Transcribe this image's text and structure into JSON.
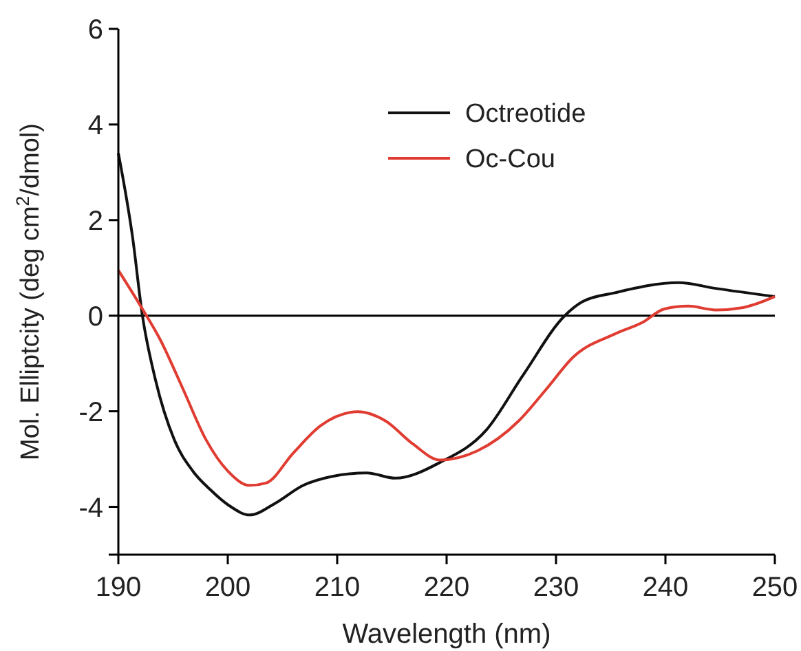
{
  "chart_data": {
    "type": "line",
    "xlabel": "Wavelength (nm)",
    "ylabel": "Mol. Elliptcity (deg cm$^{2}$/dmol)",
    "xlim": [
      190,
      250
    ],
    "xticks": [
      190,
      200,
      210,
      220,
      230,
      240,
      250
    ],
    "ylim": [
      -5,
      6
    ],
    "yticks": [
      {
        "value": -5,
        "label": null
      },
      -4,
      -2,
      0,
      2,
      4,
      6
    ],
    "legend": "top right",
    "grid": false,
    "marker": "none",
    "line_style": "solid",
    "ref_lines": [
      {
        "axis": "y",
        "value": 0,
        "label": null,
        "color": "#000000"
      }
    ],
    "series": [
      {
        "name": "Octreotide",
        "color": "#111111",
        "x": [
          190,
          191.3,
          192.2,
          193.4,
          195.1,
          196.8,
          198.4,
          200.1,
          202,
          204.3,
          206.9,
          209.4,
          212.7,
          215.3,
          219.4,
          223.6,
          227,
          230.8,
          232.4,
          235.4,
          241.2,
          244.6,
          250
        ],
        "values": [
          3.4,
          1.64,
          0,
          -1.35,
          -2.59,
          -3.25,
          -3.64,
          -3.97,
          -4.17,
          -3.93,
          -3.55,
          -3.37,
          -3.29,
          -3.4,
          -3.07,
          -2.4,
          -1.24,
          0,
          0.29,
          0.48,
          0.69,
          0.57,
          0.4
        ]
      },
      {
        "name": "Oc-Cou",
        "color": "#e03c31",
        "x": [
          190,
          192.2,
          193.8,
          195.9,
          198,
          200,
          202,
          203.5,
          206,
          208.5,
          211.9,
          214.4,
          216.9,
          219.4,
          222.8,
          226.6,
          229.1,
          231.6,
          235.4,
          237.9,
          239.9,
          242.1,
          244.6,
          247.1,
          250
        ],
        "values": [
          0.95,
          0.14,
          -0.49,
          -1.53,
          -2.59,
          -3.25,
          -3.55,
          -3.5,
          -2.87,
          -2.3,
          -2.01,
          -2.2,
          -2.68,
          -3.02,
          -2.83,
          -2.2,
          -1.54,
          -0.86,
          -0.38,
          -0.14,
          0.14,
          0.2,
          0.12,
          0.17,
          0.4
        ]
      }
    ]
  }
}
